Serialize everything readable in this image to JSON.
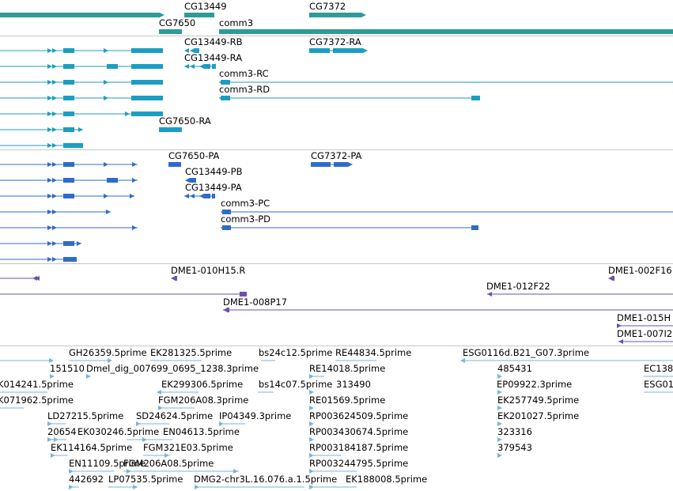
{
  "colors": {
    "gene": "#2e9a9a",
    "rna": "#1c9ec2",
    "protein": "#2f6cc9",
    "clone": "#6d4fb0",
    "est": "#7ab3e0",
    "separator": "#c8c8c8"
  },
  "tracks": {
    "genes": {
      "labels": [
        "CG13449",
        "CG7372",
        "CG7650",
        "comm3"
      ]
    },
    "transcripts": {
      "labels": [
        "CG13449-RB",
        "CG7372-RA",
        "CG13449-RA",
        "comm3-RC",
        "comm3-RD",
        "CG7650-RA"
      ]
    },
    "proteins": {
      "labels": [
        "CG7650-PA",
        "CG7372-PA",
        "CG13449-PB",
        "CG13449-PA",
        "comm3-PC",
        "comm3-PD"
      ]
    },
    "clones": {
      "labels": [
        "DME1-010H15.R",
        "DME1-002F16",
        "DME1-012F22",
        "DME1-008P17",
        "DME1-015H",
        "DME1-007I2"
      ]
    },
    "ests": {
      "labels": [
        "GH26359.5prime",
        "EK281325.5prime",
        "bs24c12.5prime",
        "RE44834.5prime",
        "ESG0116d.B21_G07.3prime",
        "151510",
        "Dmel_dig_007699_0695_1238.3prime",
        "RE14018.5prime",
        "485431",
        "EC138",
        "K014241.5prime",
        "EK299306.5prime",
        "bs14c07.5prime",
        "313490",
        "EP09922.3prime",
        "ESG01",
        "K071962.5prime",
        "FGM206A08.3prime",
        "RE01569.5prime",
        "EK257749.5prime",
        "LD27215.5prime",
        "SD24624.5prime",
        "IP04349.3prime",
        "RP003624509.5prime",
        "EK201027.5prime",
        "20654",
        "EK030246.5prime",
        "EN04613.5prime",
        "RP003430674.5prime",
        "323316",
        "EK114164.5prime",
        "FGM321E03.5prime",
        "RP003184187.5prime",
        "379543",
        "EN11109.5prime",
        "FGM206A08.5prime",
        "RP003244795.5prime",
        "442692",
        "LP07535.5prime",
        "DMG2-chr3L.16.076.a.1.5prime",
        "EK188008.5prime"
      ]
    }
  }
}
